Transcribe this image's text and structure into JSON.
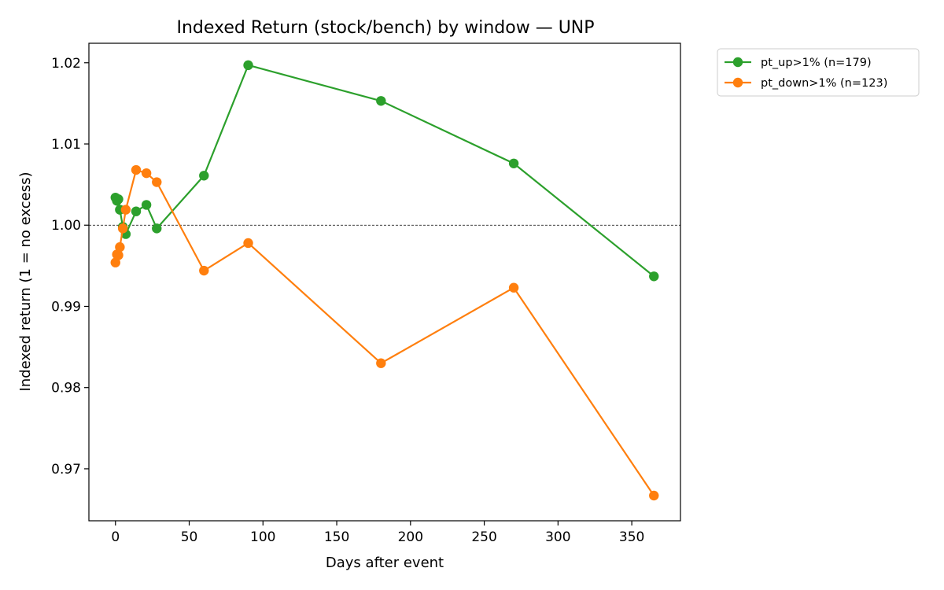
{
  "chart_data": {
    "type": "line",
    "title": "Indexed Return (stock/bench) by window — UNP",
    "xlabel": "Days after event",
    "ylabel": "Indexed return (1 = no excess)",
    "xlim": [
      -18,
      383
    ],
    "ylim": [
      0.9636,
      1.0224
    ],
    "xticks": [
      0,
      50,
      100,
      150,
      200,
      250,
      300,
      350
    ],
    "yticks": [
      0.97,
      0.98,
      0.99,
      1.0,
      1.01,
      1.02
    ],
    "ytick_labels": [
      "0.97",
      "0.98",
      "0.99",
      "1.00",
      "1.01",
      "1.02"
    ],
    "reference_line": {
      "y": 1.0,
      "style": "dashed",
      "color": "#000000"
    },
    "grid": false,
    "legend_position": "outside-top-right",
    "series": [
      {
        "name": "pt_up>1% (n=179)",
        "color": "#2ca02c",
        "marker": "circle",
        "points": [
          {
            "x": 0,
            "y": 1.0034
          },
          {
            "x": 1,
            "y": 1.003
          },
          {
            "x": 2,
            "y": 1.0032
          },
          {
            "x": 3,
            "y": 1.0019
          },
          {
            "x": 5,
            "y": 0.9998
          },
          {
            "x": 7,
            "y": 0.9989
          },
          {
            "x": 14,
            "y": 1.0017
          },
          {
            "x": 21,
            "y": 1.0025
          },
          {
            "x": 28,
            "y": 0.9996
          },
          {
            "x": 60,
            "y": 1.0061
          },
          {
            "x": 90,
            "y": 1.0197
          },
          {
            "x": 180,
            "y": 1.0153
          },
          {
            "x": 270,
            "y": 1.0076
          },
          {
            "x": 365,
            "y": 0.9937
          }
        ]
      },
      {
        "name": "pt_down>1% (n=123)",
        "color": "#ff7f0e",
        "marker": "circle",
        "points": [
          {
            "x": 0,
            "y": 0.9954
          },
          {
            "x": 1,
            "y": 0.9964
          },
          {
            "x": 2,
            "y": 0.9963
          },
          {
            "x": 3,
            "y": 0.9973
          },
          {
            "x": 5,
            "y": 0.9996
          },
          {
            "x": 7,
            "y": 1.0019
          },
          {
            "x": 14,
            "y": 1.0068
          },
          {
            "x": 21,
            "y": 1.0064
          },
          {
            "x": 28,
            "y": 1.0053
          },
          {
            "x": 60,
            "y": 0.9944
          },
          {
            "x": 90,
            "y": 0.9978
          },
          {
            "x": 180,
            "y": 0.983
          },
          {
            "x": 270,
            "y": 0.9923
          },
          {
            "x": 365,
            "y": 0.9667
          }
        ]
      }
    ]
  }
}
